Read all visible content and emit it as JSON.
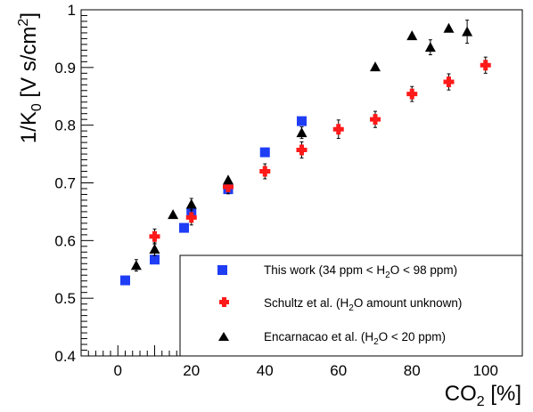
{
  "chart_data": {
    "type": "scatter",
    "xlabel": {
      "main": "CO",
      "sub": "2",
      "rest": " [%]"
    },
    "ylabel": {
      "pre": "1/K",
      "sub": "0",
      "mid": " [V s/cm",
      "sup": "2",
      "post": "]"
    },
    "xlim": [
      -10,
      110
    ],
    "ylim": [
      0.4,
      1.0
    ],
    "x_ticks": [
      0,
      20,
      40,
      60,
      80,
      100
    ],
    "y_ticks": [
      0.4,
      0.5,
      0.6,
      0.7,
      0.8,
      0.9,
      1.0
    ],
    "x_tick_labels": [
      "0",
      "20",
      "40",
      "60",
      "80",
      "100"
    ],
    "y_tick_labels": [
      "0.4",
      "0.5",
      "0.6",
      "0.7",
      "0.8",
      "0.9",
      "1"
    ],
    "grid": false,
    "legend_position": "bottom-right",
    "series": [
      {
        "name": "This work (34 ppm < H2O < 98 ppm)",
        "legend_parts": {
          "a": "This work (34 ppm < H",
          "sub": "2",
          "b": "O < 98 ppm)"
        },
        "marker": "square",
        "color": "#1f3df5",
        "points": [
          {
            "x": 2,
            "y": 0.531
          },
          {
            "x": 10,
            "y": 0.567
          },
          {
            "x": 18,
            "y": 0.622
          },
          {
            "x": 20,
            "y": 0.648
          },
          {
            "x": 30,
            "y": 0.689
          },
          {
            "x": 40,
            "y": 0.753
          },
          {
            "x": 50,
            "y": 0.807
          }
        ]
      },
      {
        "name": "Schultz et al. (H2O amount unknown)",
        "legend_parts": {
          "a": "Schultz et al.  (H",
          "sub": "2",
          "b": "O amount unknown)"
        },
        "marker": "cross",
        "color": "#ff1a1a",
        "points": [
          {
            "x": 10,
            "y": 0.607,
            "err": 0.013
          },
          {
            "x": 20,
            "y": 0.64,
            "err": 0.013
          },
          {
            "x": 30,
            "y": 0.693,
            "err": 0.012
          },
          {
            "x": 40,
            "y": 0.72,
            "err": 0.013
          },
          {
            "x": 50,
            "y": 0.757,
            "err": 0.014
          },
          {
            "x": 60,
            "y": 0.793,
            "err": 0.016
          },
          {
            "x": 70,
            "y": 0.81,
            "err": 0.014
          },
          {
            "x": 80,
            "y": 0.854,
            "err": 0.013
          },
          {
            "x": 90,
            "y": 0.875,
            "err": 0.014
          },
          {
            "x": 100,
            "y": 0.904,
            "err": 0.014
          }
        ]
      },
      {
        "name": "Encarnacao et al. (H2O < 20 ppm)",
        "legend_parts": {
          "a": "Encarnacao et al.  (H",
          "sub": "2",
          "b": "O < 20 ppm)"
        },
        "marker": "triangle",
        "color": "#000000",
        "points": [
          {
            "x": 5,
            "y": 0.557,
            "err": 0.01
          },
          {
            "x": 10,
            "y": 0.585,
            "err": 0.011
          },
          {
            "x": 15,
            "y": 0.645,
            "err": 0.0
          },
          {
            "x": 20,
            "y": 0.663,
            "err": 0.01
          },
          {
            "x": 30,
            "y": 0.705,
            "err": 0.0
          },
          {
            "x": 50,
            "y": 0.787,
            "err": 0.01
          },
          {
            "x": 70,
            "y": 0.901,
            "err": 0.0
          },
          {
            "x": 80,
            "y": 0.955,
            "err": 0.0
          },
          {
            "x": 85,
            "y": 0.935,
            "err": 0.013
          },
          {
            "x": 90,
            "y": 0.968,
            "err": 0.0
          },
          {
            "x": 95,
            "y": 0.962,
            "err": 0.02
          }
        ]
      }
    ]
  }
}
